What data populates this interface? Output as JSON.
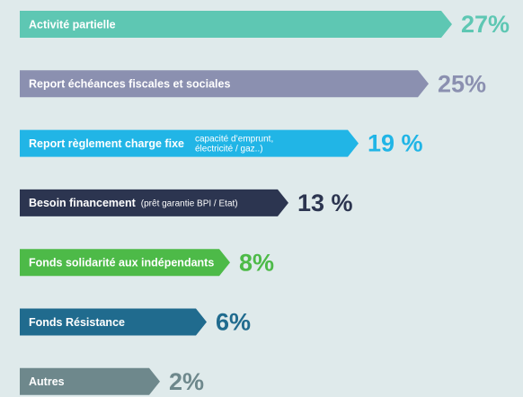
{
  "chart_data": {
    "type": "bar",
    "orientation": "horizontal",
    "categories": [
      "Activité partielle",
      "Report échéances fiscales et sociales",
      "Report règlement charge fixe",
      "Besoin financement",
      "Fonds solidarité aux indépendants",
      "Fonds Résistance",
      "Autres"
    ],
    "values": [
      27,
      25,
      19,
      13,
      8,
      6,
      2
    ],
    "value_labels": [
      "27%",
      "25%",
      "19 %",
      "13 %",
      "8%",
      "6%",
      "2%"
    ],
    "colors": [
      "#5ec7b3",
      "#8b90b0",
      "#21b5e6",
      "#2c3550",
      "#4dba48",
      "#206b8e",
      "#6e888c"
    ],
    "annotations": [
      {
        "category": "Report règlement charge fixe",
        "lines": [
          "capacité d’emprunt,",
          "électricité / gaz..)"
        ]
      },
      {
        "category": "Besoin financement",
        "lines": [
          "(prêt garantie BPI / Etat)"
        ]
      }
    ]
  }
}
